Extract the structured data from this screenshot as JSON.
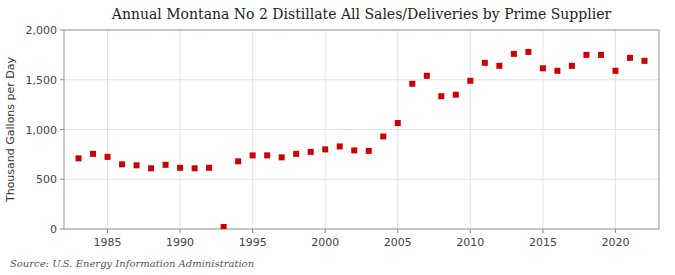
{
  "chart_data": {
    "type": "scatter",
    "title": "Annual Montana No 2 Distillate All Sales/Deliveries by Prime Supplier",
    "ylabel": "Thousand Gallons per Day",
    "annotation": "Source: U.S. Energy Information Administration",
    "color": "#cc0000",
    "marker": "square",
    "grid": true,
    "xlim": [
      1982.0,
      2023.0
    ],
    "xticks": [
      1985,
      1990,
      1995,
      2000,
      2005,
      2010,
      2015,
      2020
    ],
    "ylim": [
      0,
      2000
    ],
    "yticks": [
      0,
      500,
      {
        "value": 1000,
        "label": "1,000"
      },
      {
        "value": 1500,
        "label": "1,500"
      },
      {
        "value": 2000,
        "label": "2,000"
      }
    ],
    "x": [
      1983,
      1984,
      1985,
      1986,
      1987,
      1988,
      1989,
      1990,
      1991,
      1992,
      1993,
      1994,
      1995,
      1996,
      1997,
      1998,
      1999,
      2000,
      2001,
      2002,
      2003,
      2004,
      2005,
      2006,
      2007,
      2008,
      2009,
      2010,
      2011,
      2012,
      2013,
      2014,
      2015,
      2016,
      2017,
      2018,
      2019,
      2020,
      2021,
      2022
    ],
    "values": [
      710,
      755,
      725,
      650,
      640,
      610,
      645,
      615,
      610,
      615,
      20,
      680,
      740,
      740,
      720,
      755,
      775,
      800,
      830,
      790,
      785,
      930,
      1065,
      1460,
      1540,
      1335,
      1350,
      1490,
      1670,
      1640,
      1760,
      1780,
      1615,
      1590,
      1640,
      1750,
      1750,
      1590,
      1720,
      1690
    ]
  }
}
